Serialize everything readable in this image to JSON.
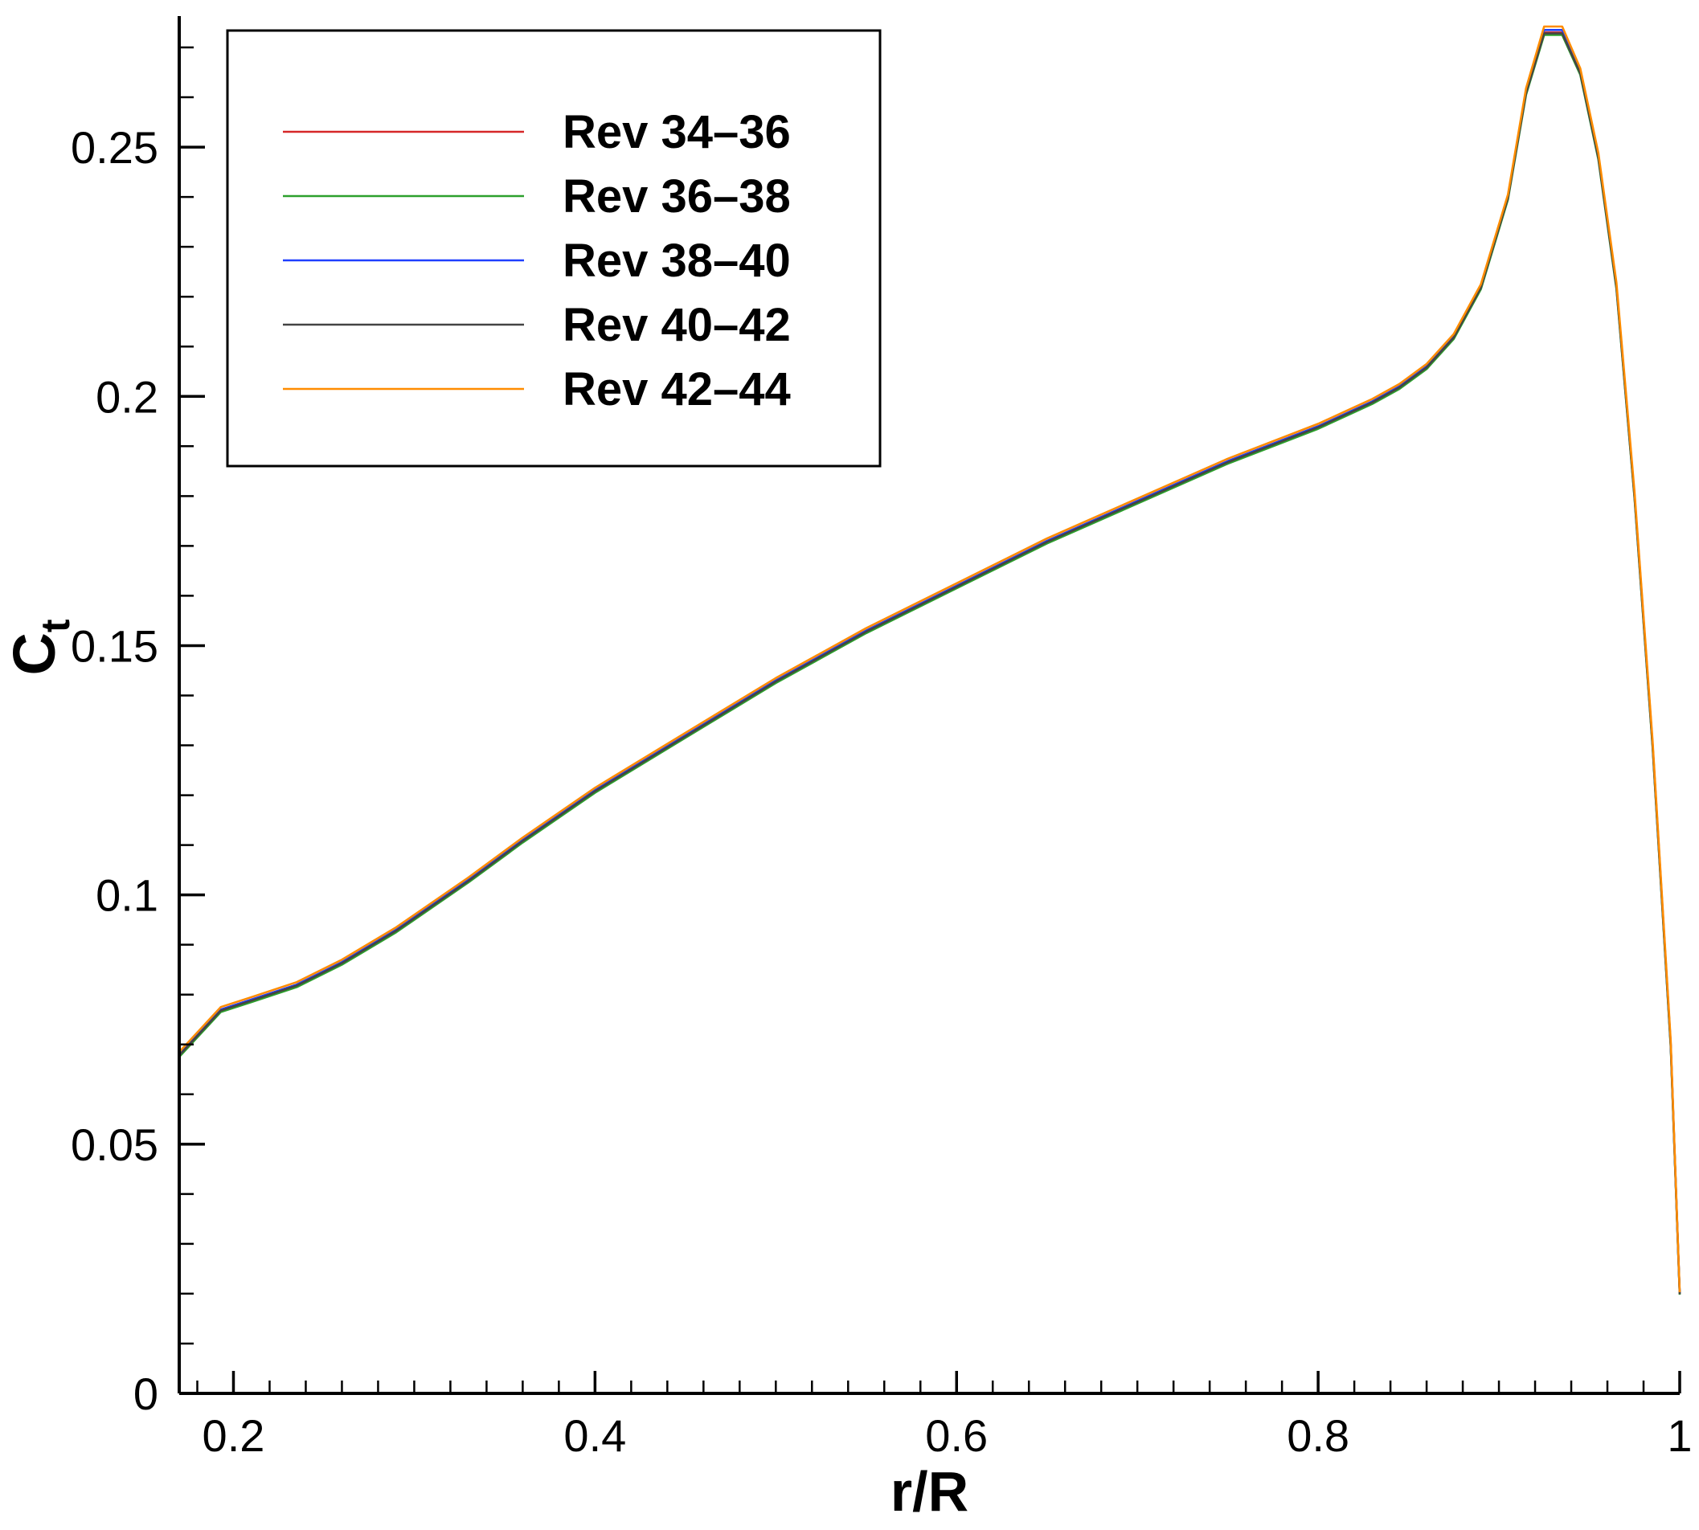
{
  "chart_data": {
    "type": "line",
    "title": "",
    "xlabel": "r/R",
    "ylabel": "C",
    "ylabel_subscript": "t",
    "xlim": [
      0.17,
      1.0
    ],
    "ylim": [
      0,
      0.275
    ],
    "x_ticks": [
      0.2,
      0.4,
      0.6,
      0.8,
      1.0
    ],
    "x_tick_labels": [
      "0.2",
      "0.4",
      "0.6",
      "0.8",
      "1"
    ],
    "y_ticks": [
      0,
      0.05,
      0.1,
      0.15,
      0.2,
      0.25
    ],
    "y_tick_labels": [
      "0",
      "0.05",
      "0.1",
      "0.15",
      "0.2",
      "0.25"
    ],
    "grid": false,
    "legend_position": "top-left",
    "x": [
      0.17,
      0.193,
      0.21,
      0.235,
      0.26,
      0.29,
      0.33,
      0.36,
      0.4,
      0.45,
      0.5,
      0.55,
      0.6,
      0.65,
      0.7,
      0.75,
      0.8,
      0.83,
      0.845,
      0.86,
      0.875,
      0.89,
      0.905,
      0.915,
      0.925,
      0.935,
      0.945,
      0.955,
      0.965,
      0.975,
      0.985,
      0.995,
      1.0
    ],
    "series": [
      {
        "name": "Rev 34–36",
        "color": "#d62728",
        "values": [
          0.068,
          0.077,
          0.079,
          0.082,
          0.0865,
          0.093,
          0.103,
          0.111,
          0.121,
          0.132,
          0.143,
          0.153,
          0.162,
          0.171,
          0.179,
          0.187,
          0.194,
          0.199,
          0.202,
          0.206,
          0.212,
          0.222,
          0.24,
          0.261,
          0.273,
          0.273,
          0.265,
          0.248,
          0.222,
          0.18,
          0.13,
          0.07,
          0.02
        ]
      },
      {
        "name": "Rev 36–38",
        "color": "#2ca02c",
        "values": [
          0.0675,
          0.0765,
          0.0785,
          0.0815,
          0.086,
          0.0925,
          0.1025,
          0.1105,
          0.1205,
          0.1315,
          0.1425,
          0.1525,
          0.1615,
          0.1705,
          0.1785,
          0.1865,
          0.1935,
          0.1985,
          0.2015,
          0.2055,
          0.2115,
          0.2215,
          0.2395,
          0.2605,
          0.2725,
          0.2725,
          0.2645,
          0.2475,
          0.2215,
          0.1795,
          0.1295,
          0.0695,
          0.0198
        ]
      },
      {
        "name": "Rev 38–40",
        "color": "#1f3fff",
        "values": [
          0.068,
          0.077,
          0.079,
          0.082,
          0.0865,
          0.093,
          0.103,
          0.111,
          0.121,
          0.132,
          0.143,
          0.153,
          0.162,
          0.171,
          0.179,
          0.187,
          0.194,
          0.199,
          0.202,
          0.206,
          0.212,
          0.222,
          0.2402,
          0.2612,
          0.2735,
          0.2735,
          0.2652,
          0.2482,
          0.2222,
          0.1802,
          0.1302,
          0.0702,
          0.0201
        ]
      },
      {
        "name": "Rev 40–42",
        "color": "#444444",
        "values": [
          0.0678,
          0.0768,
          0.0788,
          0.0818,
          0.0863,
          0.0928,
          0.1028,
          0.1108,
          0.1208,
          0.1318,
          0.1428,
          0.1528,
          0.1618,
          0.1708,
          0.1788,
          0.1868,
          0.1938,
          0.1988,
          0.2018,
          0.2058,
          0.2118,
          0.2218,
          0.2398,
          0.2608,
          0.2728,
          0.2728,
          0.2648,
          0.2478,
          0.2218,
          0.1798,
          0.1298,
          0.0698,
          0.0199
        ]
      },
      {
        "name": "Rev 42–44",
        "color": "#ff8c00",
        "values": [
          0.0685,
          0.0775,
          0.0795,
          0.0825,
          0.087,
          0.0935,
          0.1035,
          0.1115,
          0.1215,
          0.1325,
          0.1435,
          0.1535,
          0.1625,
          0.1715,
          0.1795,
          0.1875,
          0.1945,
          0.1995,
          0.2025,
          0.2065,
          0.2125,
          0.2225,
          0.2405,
          0.2618,
          0.2742,
          0.2742,
          0.2658,
          0.2488,
          0.2228,
          0.1808,
          0.1308,
          0.0708,
          0.0203
        ]
      }
    ]
  }
}
